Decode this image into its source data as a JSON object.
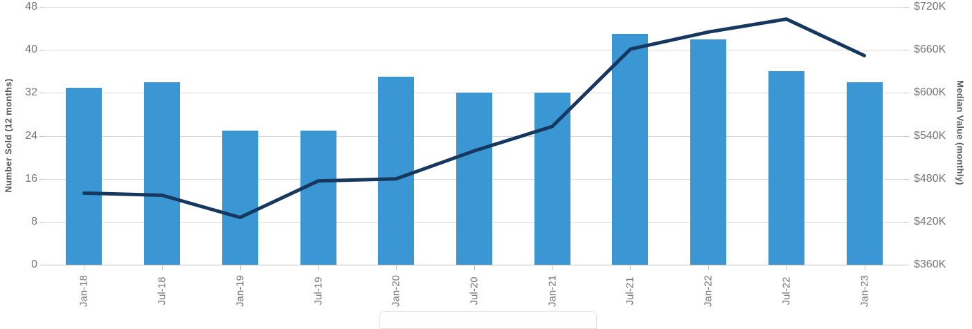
{
  "chart_data": {
    "type": "bar",
    "title": "",
    "categories": [
      "Jan-18",
      "Jul-18",
      "Jan-19",
      "Jul-19",
      "Jan-20",
      "Jul-20",
      "Jan-21",
      "Jul-21",
      "Jan-22",
      "Jul-22",
      "Jan-23"
    ],
    "series": [
      {
        "name": "Number Sold",
        "type": "bar",
        "axis": "left",
        "color": "#3b97d3",
        "values": [
          33,
          34,
          25,
          25,
          35,
          32,
          32,
          43,
          42,
          36,
          34
        ]
      },
      {
        "name": "Median Value",
        "type": "line",
        "axis": "right",
        "color": "#17385e",
        "values_k_usd": [
          460,
          457,
          426,
          477,
          480,
          519,
          553,
          661,
          685,
          703,
          652
        ]
      }
    ],
    "left_axis": {
      "label": "Number Sold (12 months)",
      "tick_labels_top_down": [
        "48",
        "40",
        "32",
        "24",
        "16",
        "8",
        "0"
      ],
      "range": [
        0,
        48
      ]
    },
    "right_axis": {
      "label": "Median Value (monthly)",
      "tick_labels_top_down": [
        "$720K",
        "$660K",
        "$600K",
        "$540K",
        "$480K",
        "$420K",
        "$360K"
      ],
      "range_k_usd": [
        360,
        720
      ]
    },
    "grid": true,
    "legend_position": "bottom-cut-off",
    "colors": {
      "bar": "#3b97d3",
      "line": "#17385e",
      "gridline": "#d9d9d9",
      "axis_line": "#bdbdbd",
      "tick_text": "#757575",
      "axis_title_text": "#595959"
    }
  }
}
